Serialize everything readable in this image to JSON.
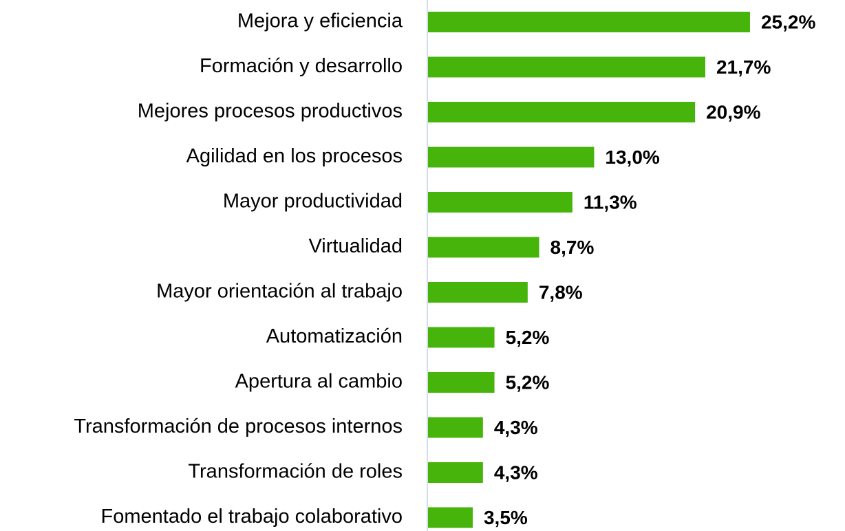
{
  "chart_data": {
    "type": "bar",
    "orientation": "horizontal",
    "color": "#46b40a",
    "categories": [
      "Mejora y eficiencia",
      "Formación y desarrollo",
      "Mejores procesos productivos",
      "Agilidad en los procesos",
      "Mayor productividad",
      "Virtualidad",
      "Mayor orientación al trabajo",
      "Automatización",
      "Apertura al cambio",
      "Transformación de procesos internos",
      "Transformación de roles",
      "Fomentado el trabajo colaborativo"
    ],
    "values": [
      25.2,
      21.7,
      20.9,
      13.0,
      11.3,
      8.7,
      7.8,
      5.2,
      5.2,
      4.3,
      4.3,
      3.5
    ],
    "value_labels": [
      "25,2%",
      "21,7%",
      "20,9%",
      "13,0%",
      "11,3%",
      "8,7%",
      "7,8%",
      "5,2%",
      "5,2%",
      "4,3%",
      "4,3%",
      "3,5%"
    ]
  }
}
